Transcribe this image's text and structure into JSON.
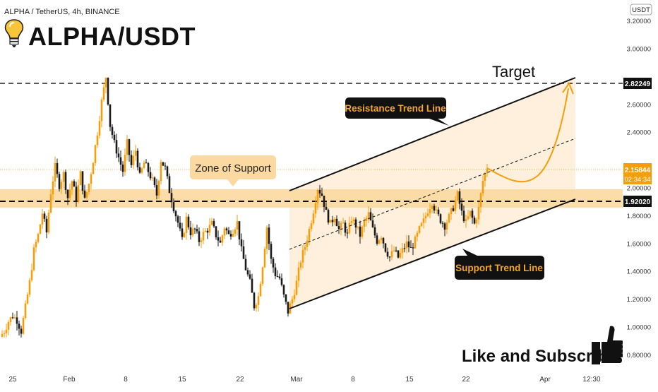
{
  "header": {
    "symbol_line": "ALPHA / TetherUS, 4h, BINANCE",
    "big_title": "ALPHA/USDT",
    "icon": "lightbulb-icon"
  },
  "price_axis": {
    "unit_badge": "USDT",
    "ticks": [
      "3.20000",
      "3.00000",
      "2.60000",
      "2.40000",
      "2.00000",
      "1.80000",
      "1.60000",
      "1.40000",
      "1.20000",
      "1.00000",
      "0.80000"
    ],
    "target_label": "2.82249",
    "last_price_label": "2.15844",
    "countdown_label": "02:34:34",
    "support_label": "1.92020"
  },
  "time_axis": {
    "ticks": [
      "25",
      "Feb",
      "8",
      "15",
      "22",
      "Mar",
      "8",
      "15",
      "22",
      "Apr",
      "12:30"
    ]
  },
  "annotations": {
    "target": "Target",
    "resistance": "Resistance Trend Line",
    "support_zone": "Zone of Support",
    "support_trend": "Support Trend Line",
    "cta": "Like and Subscribe",
    "cta_icon": "thumbs-up-icon"
  },
  "colors": {
    "up": "#f59e0b",
    "down": "#1a1a1a",
    "zone": "#fcd9a0",
    "channel": "#fdebd0",
    "projection": "#f59e0b"
  },
  "chart_data": {
    "type": "candlestick",
    "ylim": [
      0.7,
      3.3
    ],
    "key_levels": {
      "target": 2.82249,
      "support": 1.9202,
      "last": 2.15844
    },
    "support_zone": [
      1.87,
      2.0
    ],
    "path_points": [
      [
        0,
        0.93
      ],
      [
        6,
        0.97
      ],
      [
        12,
        1.04
      ],
      [
        18,
        1.08
      ],
      [
        24,
        1.05
      ],
      [
        30,
        0.97
      ],
      [
        36,
        1.14
      ],
      [
        42,
        1.32
      ],
      [
        48,
        1.55
      ],
      [
        54,
        1.66
      ],
      [
        60,
        1.82
      ],
      [
        66,
        1.68
      ],
      [
        72,
        1.97
      ],
      [
        78,
        2.15
      ],
      [
        84,
        2.02
      ],
      [
        90,
        2.1
      ],
      [
        96,
        1.93
      ],
      [
        102,
        2.05
      ],
      [
        108,
        1.92
      ],
      [
        114,
        2.1
      ],
      [
        120,
        1.91
      ],
      [
        126,
        2.03
      ],
      [
        132,
        2.2
      ],
      [
        138,
        2.4
      ],
      [
        144,
        2.62
      ],
      [
        150,
        2.8
      ],
      [
        156,
        2.45
      ],
      [
        162,
        2.32
      ],
      [
        168,
        2.22
      ],
      [
        174,
        2.12
      ],
      [
        180,
        2.32
      ],
      [
        186,
        2.16
      ],
      [
        192,
        2.27
      ],
      [
        198,
        2.08
      ],
      [
        204,
        2.18
      ],
      [
        210,
        2.12
      ],
      [
        216,
        2.05
      ],
      [
        222,
        1.95
      ],
      [
        228,
        2.2
      ],
      [
        234,
        2.14
      ],
      [
        240,
        1.98
      ],
      [
        246,
        1.86
      ],
      [
        252,
        1.75
      ],
      [
        258,
        1.62
      ],
      [
        264,
        1.78
      ],
      [
        270,
        1.68
      ],
      [
        276,
        1.7
      ],
      [
        282,
        1.62
      ],
      [
        288,
        1.67
      ],
      [
        294,
        1.7
      ],
      [
        300,
        1.74
      ],
      [
        306,
        1.66
      ],
      [
        312,
        1.6
      ],
      [
        318,
        1.72
      ],
      [
        324,
        1.66
      ],
      [
        330,
        1.7
      ],
      [
        336,
        1.75
      ],
      [
        342,
        1.55
      ],
      [
        348,
        1.42
      ],
      [
        354,
        1.32
      ],
      [
        360,
        1.15
      ],
      [
        366,
        1.22
      ],
      [
        372,
        1.45
      ],
      [
        378,
        1.72
      ],
      [
        384,
        1.48
      ],
      [
        390,
        1.38
      ],
      [
        396,
        1.35
      ],
      [
        402,
        1.22
      ],
      [
        408,
        1.11
      ],
      [
        414,
        1.2
      ],
      [
        420,
        1.32
      ],
      [
        426,
        1.48
      ],
      [
        432,
        1.58
      ],
      [
        438,
        1.7
      ],
      [
        444,
        1.84
      ],
      [
        450,
        2.0
      ],
      [
        456,
        1.95
      ],
      [
        462,
        1.82
      ],
      [
        468,
        1.74
      ],
      [
        474,
        1.8
      ],
      [
        480,
        1.7
      ],
      [
        486,
        1.74
      ],
      [
        492,
        1.66
      ],
      [
        498,
        1.78
      ],
      [
        504,
        1.73
      ],
      [
        510,
        1.66
      ],
      [
        516,
        1.75
      ],
      [
        522,
        1.81
      ],
      [
        528,
        1.7
      ],
      [
        534,
        1.62
      ],
      [
        540,
        1.66
      ],
      [
        546,
        1.56
      ],
      [
        552,
        1.5
      ],
      [
        558,
        1.55
      ],
      [
        564,
        1.5
      ],
      [
        570,
        1.55
      ],
      [
        576,
        1.6
      ],
      [
        582,
        1.56
      ],
      [
        588,
        1.62
      ],
      [
        594,
        1.7
      ],
      [
        600,
        1.76
      ],
      [
        606,
        1.84
      ],
      [
        612,
        1.9
      ],
      [
        618,
        1.82
      ],
      [
        624,
        1.77
      ],
      [
        630,
        1.73
      ],
      [
        636,
        1.79
      ],
      [
        642,
        1.86
      ],
      [
        648,
        1.95
      ],
      [
        654,
        1.82
      ],
      [
        660,
        1.75
      ],
      [
        666,
        1.82
      ],
      [
        672,
        1.74
      ],
      [
        678,
        1.85
      ],
      [
        684,
        2.05
      ],
      [
        690,
        2.15
      ]
    ]
  }
}
